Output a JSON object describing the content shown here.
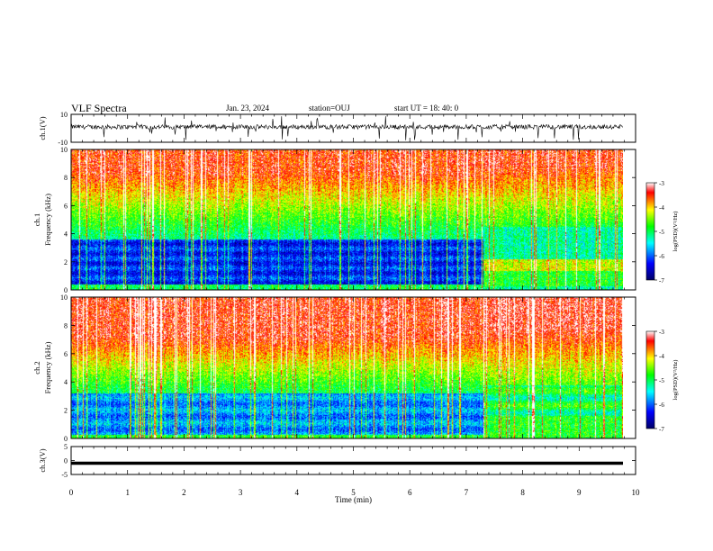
{
  "header": {
    "title": "VLF Spectra",
    "date": "Jan. 23, 2024",
    "station": "station=OUJ",
    "start": "start UT =  18: 40: 0"
  },
  "colors": {
    "colormap": [
      "#000066",
      "#0000ff",
      "#00ffff",
      "#00ff00",
      "#ffff00",
      "#ff0000",
      "#ffffff"
    ]
  },
  "chart_data": [
    {
      "type": "line",
      "panel": "waveform-top",
      "ylabel": "ch.1(V)",
      "ylim": [
        -10,
        10
      ],
      "yticks": [
        10,
        -10
      ],
      "xlim": [
        0,
        10
      ],
      "baseline_value": 1.0,
      "description_values": "dense noisy waveform around ~1 V with sporadic negative spikes"
    },
    {
      "type": "heatmap",
      "panel": "spectrogram-ch1",
      "ylabel": "ch.1\nFrequency (kHz)",
      "ylim": [
        0,
        10
      ],
      "yticks": [
        0,
        2,
        4,
        6,
        8,
        10
      ],
      "xlim": [
        0,
        9.83
      ],
      "change_time_min": 7.3,
      "colorbar": {
        "label": "log(PSD)(V²/Hz)",
        "range": [
          -7,
          -3
        ],
        "ticks": [
          -3,
          -4,
          -5,
          -6,
          -7
        ]
      }
    },
    {
      "type": "heatmap",
      "panel": "spectrogram-ch2",
      "ylabel": "ch.2\nFrequency (kHz)",
      "ylim": [
        0,
        10
      ],
      "yticks": [
        0,
        2,
        4,
        6,
        8,
        10
      ],
      "xlim": [
        0,
        9.83
      ],
      "change_time_min": 7.3,
      "colorbar": {
        "label": "log(PSD)(V²/Hz)",
        "range": [
          -7,
          -3
        ],
        "ticks": [
          -3,
          -4,
          -5,
          -6,
          -7
        ]
      }
    },
    {
      "type": "line",
      "panel": "waveform-bottom",
      "ylabel": "ch.3(V)",
      "ylim": [
        -5,
        5
      ],
      "yticks": [
        5,
        0,
        -5
      ],
      "xlim": [
        0,
        10
      ],
      "constant_value": 0.0
    }
  ],
  "xaxis": {
    "label": "Time (min)",
    "range": [
      0,
      10
    ],
    "ticks": [
      "0",
      "1",
      "2",
      "3",
      "4",
      "5",
      "6",
      "7",
      "8",
      "9",
      "10"
    ]
  }
}
